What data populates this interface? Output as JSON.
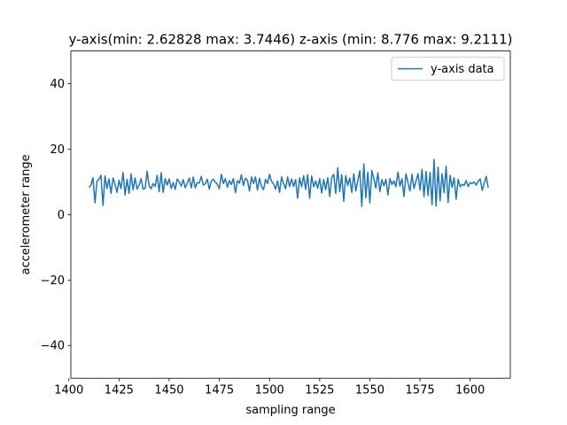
{
  "chart_data": {
    "type": "line",
    "title": "y-axis(min: 2.62828  max: 3.7446) z-axis (min: 8.776 max: 9.2111)",
    "xlabel": "sampling range",
    "ylabel": "accelerometer range",
    "xlim": [
      1401,
      1620
    ],
    "ylim": [
      -50,
      50
    ],
    "xticks": [
      1400,
      1425,
      1450,
      1475,
      1500,
      1525,
      1550,
      1575,
      1600
    ],
    "yticks": [
      -40,
      -20,
      0,
      20,
      40
    ],
    "grid": false,
    "legend_position": "top-right",
    "series": [
      {
        "name": "y-axis data",
        "color": "#1f77b4",
        "x_start": 1410,
        "x_step": 1,
        "values": [
          8.3,
          9.0,
          11.3,
          3.6,
          10.2,
          10.8,
          12.0,
          2.8,
          11.8,
          8.0,
          10.9,
          6.5,
          11.2,
          9.3,
          6.8,
          10.5,
          7.9,
          12.9,
          6.0,
          10.8,
          6.5,
          12.5,
          7.5,
          11.2,
          7.8,
          9.0,
          11.0,
          7.8,
          8.0,
          13.3,
          8.8,
          7.9,
          9.5,
          8.6,
          12.0,
          7.0,
          12.8,
          6.8,
          11.0,
          9.0,
          10.9,
          8.0,
          9.8,
          7.7,
          10.9,
          10.0,
          8.7,
          10.7,
          8.2,
          9.6,
          11.2,
          8.2,
          11.5,
          8.2,
          9.8,
          9.6,
          11.7,
          9.0,
          9.4,
          10.8,
          7.8,
          10.3,
          10.8,
          9.9,
          9.3,
          7.9,
          12.3,
          9.5,
          11.0,
          8.4,
          10.4,
          9.2,
          11.0,
          6.7,
          10.4,
          9.6,
          12.2,
          8.9,
          11.1,
          10.5,
          7.2,
          11.5,
          9.5,
          11.5,
          7.5,
          11.1,
          8.6,
          7.6,
          10.8,
          9.5,
          12.3,
          10.2,
          9.4,
          7.8,
          10.3,
          6.8,
          11.5,
          9.5,
          7.9,
          11.5,
          8.6,
          10.9,
          8.6,
          10.7,
          5.0,
          11.2,
          8.5,
          11.9,
          7.7,
          12.2,
          5.0,
          11.8,
          8.5,
          10.3,
          8.0,
          11.0,
          6.6,
          10.8,
          7.6,
          11.3,
          5.5,
          11.3,
          12.3,
          6.5,
          14.3,
          7.0,
          12.2,
          4.1,
          11.9,
          8.9,
          11.2,
          6.8,
          12.5,
          7.2,
          10.4,
          13.4,
          2.5,
          15.5,
          5.1,
          13.0,
          3.6,
          13.5,
          11.0,
          8.1,
          12.8,
          7.0,
          10.7,
          8.8,
          10.8,
          6.0,
          11.0,
          9.2,
          10.3,
          8.5,
          13.0,
          8.7,
          11.0,
          5.5,
          12.5,
          9.8,
          7.2,
          12.3,
          8.0,
          10.2,
          12.5,
          7.5,
          13.8,
          5.5,
          13.2,
          5.8,
          12.9,
          3.0,
          16.9,
          2.6,
          14.5,
          4.2,
          12.5,
          6.7,
          14.8,
          3.7,
          12.0,
          8.3,
          11.3,
          4.7,
          10.8,
          8.5,
          9.3,
          8.9,
          10.4,
          8.6,
          9.8,
          9.5,
          10.0,
          9.0,
          10.2,
          10.9,
          7.4,
          9.6,
          11.7,
          8.2
        ]
      }
    ]
  }
}
